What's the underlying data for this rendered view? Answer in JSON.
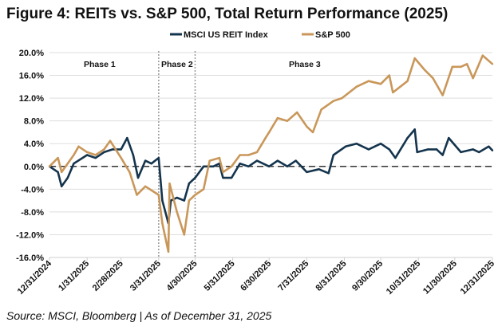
{
  "chart_data": {
    "type": "line",
    "title": "Figure 4: REITs vs. S&P 500, Total Return Performance (2025)",
    "xlabel": "",
    "ylabel": "",
    "ylim": [
      -16,
      20
    ],
    "y_ticks": [
      "20.0%",
      "16.0%",
      "12.0%",
      "8.0%",
      "4.0%",
      "0.0%",
      "-4.0%",
      "-8.0%",
      "-12.0%",
      "-16.0%"
    ],
    "x_ticks": [
      "12/31/2024",
      "1/31/2025",
      "2/28/2025",
      "3/31/2025",
      "4/30/2025",
      "5/31/2025",
      "6/30/2025",
      "7/31/2025",
      "8/31/2025",
      "9/30/2025",
      "10/31/2025",
      "11/30/2025",
      "12/31/2025"
    ],
    "grid": "horizontal",
    "legend_position": "top",
    "reference_line": {
      "y": 0,
      "style": "dashed"
    },
    "phases": [
      {
        "label": "Phase 1"
      },
      {
        "label": "Phase 2",
        "start": "2025-03-31",
        "end": "2025-04-30"
      },
      {
        "label": "Phase 3"
      }
    ],
    "series": [
      {
        "name": "MSCI US REIT Index",
        "color": "#14344d",
        "points": [
          [
            "2024-12-31",
            0
          ],
          [
            "2025-01-07",
            -1
          ],
          [
            "2025-01-10",
            -3.5
          ],
          [
            "2025-01-15",
            -2
          ],
          [
            "2025-01-20",
            0.5
          ],
          [
            "2025-01-31",
            2
          ],
          [
            "2025-02-07",
            1.5
          ],
          [
            "2025-02-14",
            2.5
          ],
          [
            "2025-02-21",
            3
          ],
          [
            "2025-02-28",
            3
          ],
          [
            "2025-03-05",
            5
          ],
          [
            "2025-03-10",
            2
          ],
          [
            "2025-03-14",
            -2
          ],
          [
            "2025-03-20",
            1
          ],
          [
            "2025-03-25",
            0.5
          ],
          [
            "2025-03-31",
            1.5
          ],
          [
            "2025-04-03",
            -6
          ],
          [
            "2025-04-08",
            -10
          ],
          [
            "2025-04-10",
            -6
          ],
          [
            "2025-04-15",
            -5.5
          ],
          [
            "2025-04-21",
            -6
          ],
          [
            "2025-04-25",
            -3
          ],
          [
            "2025-04-30",
            -2
          ],
          [
            "2025-05-07",
            0
          ],
          [
            "2025-05-15",
            0
          ],
          [
            "2025-05-20",
            0.5
          ],
          [
            "2025-05-23",
            -2
          ],
          [
            "2025-05-30",
            -2
          ],
          [
            "2025-06-06",
            0.5
          ],
          [
            "2025-06-13",
            0
          ],
          [
            "2025-06-20",
            1
          ],
          [
            "2025-06-30",
            0
          ],
          [
            "2025-07-07",
            1
          ],
          [
            "2025-07-15",
            0
          ],
          [
            "2025-07-22",
            1
          ],
          [
            "2025-07-31",
            -1
          ],
          [
            "2025-08-10",
            -0.5
          ],
          [
            "2025-08-18",
            -1.2
          ],
          [
            "2025-08-22",
            2
          ],
          [
            "2025-09-01",
            3.5
          ],
          [
            "2025-09-10",
            4
          ],
          [
            "2025-09-20",
            3
          ],
          [
            "2025-09-30",
            4
          ],
          [
            "2025-10-07",
            3
          ],
          [
            "2025-10-12",
            1.5
          ],
          [
            "2025-10-22",
            5
          ],
          [
            "2025-10-28",
            6.5
          ],
          [
            "2025-10-30",
            2.5
          ],
          [
            "2025-11-08",
            3
          ],
          [
            "2025-11-15",
            3
          ],
          [
            "2025-11-20",
            2
          ],
          [
            "2025-11-25",
            5
          ],
          [
            "2025-12-05",
            2.5
          ],
          [
            "2025-12-15",
            3
          ],
          [
            "2025-12-20",
            2.5
          ],
          [
            "2025-12-28",
            3.5
          ],
          [
            "2025-12-31",
            2.8
          ]
        ]
      },
      {
        "name": "S&P 500",
        "color": "#c9975a",
        "points": [
          [
            "2024-12-31",
            0
          ],
          [
            "2025-01-07",
            1.5
          ],
          [
            "2025-01-10",
            -1
          ],
          [
            "2025-01-20",
            2
          ],
          [
            "2025-01-24",
            3.5
          ],
          [
            "2025-01-31",
            2.5
          ],
          [
            "2025-02-07",
            2
          ],
          [
            "2025-02-14",
            3
          ],
          [
            "2025-02-19",
            4.5
          ],
          [
            "2025-02-28",
            1.5
          ],
          [
            "2025-03-07",
            -1
          ],
          [
            "2025-03-13",
            -5
          ],
          [
            "2025-03-20",
            -3.5
          ],
          [
            "2025-03-31",
            -5
          ],
          [
            "2025-04-03",
            -10
          ],
          [
            "2025-04-08",
            -15
          ],
          [
            "2025-04-09",
            -3
          ],
          [
            "2025-04-15",
            -8
          ],
          [
            "2025-04-21",
            -12
          ],
          [
            "2025-04-25",
            -6
          ],
          [
            "2025-04-30",
            -5
          ],
          [
            "2025-05-07",
            -4
          ],
          [
            "2025-05-12",
            1
          ],
          [
            "2025-05-20",
            1.5
          ],
          [
            "2025-05-23",
            -1
          ],
          [
            "2025-05-30",
            0
          ],
          [
            "2025-06-06",
            2
          ],
          [
            "2025-06-13",
            2
          ],
          [
            "2025-06-20",
            2.5
          ],
          [
            "2025-06-27",
            5
          ],
          [
            "2025-06-30",
            6
          ],
          [
            "2025-07-07",
            8.5
          ],
          [
            "2025-07-15",
            8
          ],
          [
            "2025-07-23",
            9.5
          ],
          [
            "2025-07-31",
            7
          ],
          [
            "2025-08-05",
            6
          ],
          [
            "2025-08-12",
            10
          ],
          [
            "2025-08-22",
            11.5
          ],
          [
            "2025-08-29",
            12
          ],
          [
            "2025-09-10",
            14
          ],
          [
            "2025-09-20",
            15
          ],
          [
            "2025-09-30",
            14.5
          ],
          [
            "2025-10-07",
            16
          ],
          [
            "2025-10-10",
            13
          ],
          [
            "2025-10-22",
            15
          ],
          [
            "2025-10-28",
            19
          ],
          [
            "2025-11-05",
            17
          ],
          [
            "2025-11-12",
            15.5
          ],
          [
            "2025-11-20",
            12.5
          ],
          [
            "2025-11-28",
            17.5
          ],
          [
            "2025-12-05",
            17.5
          ],
          [
            "2025-12-10",
            18
          ],
          [
            "2025-12-15",
            15.5
          ],
          [
            "2025-12-23",
            19.5
          ],
          [
            "2025-12-31",
            18
          ]
        ]
      }
    ],
    "source": "Source: MSCI, Bloomberg | As of December 31, 2025"
  }
}
